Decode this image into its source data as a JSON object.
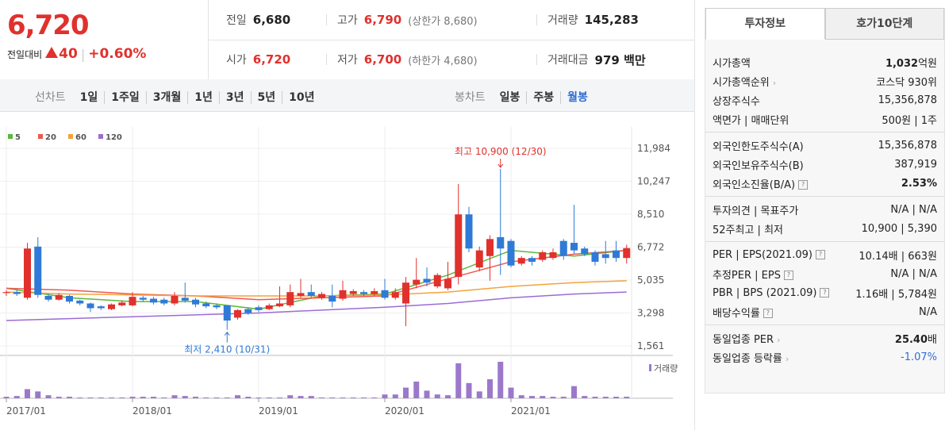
{
  "header": {
    "price": "6,720",
    "change_label": "전일대비",
    "change": "40",
    "change_rate": "+0.60%",
    "stats": [
      {
        "label": "전일",
        "value": "6,680",
        "color": "#222"
      },
      {
        "label": "고가",
        "value": "6,790",
        "note": "(상한가 8,680)",
        "color": "#e0312d"
      },
      {
        "label": "거래량",
        "value": "145,283",
        "color": "#222"
      },
      {
        "label": "시가",
        "value": "6,720",
        "color": "#e0312d"
      },
      {
        "label": "저가",
        "value": "6,700",
        "note": "(하한가 4,680)",
        "color": "#e0312d"
      },
      {
        "label": "거래대금",
        "value": "979 백만",
        "color": "#222"
      }
    ]
  },
  "toolbar": {
    "line_label": "선차트",
    "line_periods": [
      "1일",
      "1주일",
      "3개월",
      "1년",
      "3년",
      "5년",
      "10년"
    ],
    "candle_label": "봉차트",
    "candle_periods": [
      "일봉",
      "주봉",
      "월봉"
    ],
    "active": "월봉"
  },
  "chart_data": {
    "type": "candlestick",
    "categories": [
      "2017/01",
      null,
      null,
      null,
      null,
      null,
      null,
      null,
      null,
      null,
      null,
      null,
      "2018/01",
      null,
      null,
      null,
      null,
      null,
      null,
      null,
      null,
      null,
      null,
      null,
      "2019/01",
      null,
      null,
      null,
      null,
      null,
      null,
      null,
      null,
      null,
      null,
      null,
      "2020/01",
      null,
      null,
      null,
      null,
      null,
      null,
      null,
      null,
      null,
      null,
      null,
      "2021/01",
      null,
      null,
      null,
      null,
      null,
      null,
      null,
      null,
      null,
      null,
      null
    ],
    "open": [
      4350,
      4400,
      4100,
      6800,
      4200,
      4000,
      4200,
      3950,
      3800,
      3650,
      3500,
      3700,
      3700,
      4100,
      4050,
      4000,
      3800,
      4100,
      4000,
      3800,
      3700,
      3700,
      3050,
      3500,
      3600,
      3500,
      3650,
      3700,
      4200,
      4400,
      4100,
      4200,
      4050,
      4300,
      4400,
      4300,
      4500,
      4100,
      3800,
      4800,
      5100,
      4700,
      4600,
      5200,
      8500,
      5700,
      6300,
      7300,
      7100,
      5900,
      6200,
      6100,
      6200,
      7100,
      7000,
      6700,
      6500,
      6400,
      6600,
      6200
    ],
    "high": [
      4500,
      4500,
      7000,
      7300,
      4300,
      4350,
      4250,
      4000,
      3850,
      3700,
      3800,
      3950,
      4400,
      4200,
      4150,
      4100,
      4400,
      4900,
      4100,
      3900,
      3800,
      3700,
      3500,
      3600,
      3700,
      3800,
      4700,
      4800,
      5100,
      4800,
      4400,
      4800,
      5000,
      4550,
      4500,
      4600,
      5100,
      4600,
      5200,
      6200,
      5700,
      5400,
      6000,
      10100,
      8900,
      6800,
      7400,
      10900,
      7200,
      6300,
      6300,
      6600,
      6700,
      7200,
      9000,
      6800,
      6600,
      7100,
      7100,
      6900
    ],
    "low": [
      4200,
      4200,
      4000,
      4100,
      3900,
      3950,
      3800,
      3700,
      3350,
      3450,
      3450,
      3650,
      3650,
      3900,
      3750,
      3700,
      3700,
      3850,
      3600,
      3550,
      3500,
      2410,
      2950,
      3200,
      3350,
      3450,
      3600,
      3600,
      4100,
      4050,
      4000,
      3600,
      3950,
      4200,
      4200,
      4200,
      4000,
      4000,
      2600,
      4600,
      4700,
      4600,
      4500,
      4800,
      6500,
      5500,
      5000,
      5300,
      5700,
      5800,
      5800,
      6000,
      6100,
      6100,
      6400,
      6300,
      5800,
      5900,
      6000,
      5900
    ],
    "close": [
      4400,
      4300,
      6700,
      4250,
      4000,
      4250,
      3900,
      3800,
      3550,
      3550,
      3750,
      3850,
      4150,
      4000,
      3850,
      3800,
      4200,
      3950,
      3750,
      3650,
      3600,
      2900,
      3450,
      3300,
      3450,
      3700,
      3800,
      4400,
      4350,
      4200,
      4300,
      3900,
      4500,
      4450,
      4300,
      4450,
      4100,
      4400,
      4900,
      5050,
      4900,
      5300,
      5100,
      8500,
      6700,
      6600,
      7200,
      6700,
      5800,
      6200,
      6000,
      6500,
      6500,
      6300,
      6600,
      6400,
      6000,
      6200,
      6200,
      6720
    ],
    "up_color": "#e0312d",
    "down_color": "#2f7ad6",
    "series": [
      {
        "name": "5",
        "color": "#5cb83b",
        "x": [
          "2017/01",
          "2017/07",
          "2018/01",
          "2018/07",
          "2019/01",
          "2019/07",
          "2020/01",
          "2020/07",
          "2021/01",
          "2021/07",
          "2021/12"
        ],
        "values": [
          4600,
          4100,
          3900,
          3900,
          3500,
          4200,
          4300,
          5300,
          6600,
          6300,
          6600
        ]
      },
      {
        "name": "20",
        "color": "#f05650",
        "x": [
          "2017/01",
          "2017/07",
          "2018/01",
          "2018/07",
          "2019/01",
          "2019/07",
          "2020/01",
          "2020/07",
          "2021/01",
          "2021/07",
          "2021/12"
        ],
        "values": [
          4600,
          4500,
          4300,
          4200,
          4000,
          4100,
          4200,
          5100,
          6000,
          6400,
          6600
        ]
      },
      {
        "name": "60",
        "color": "#f5a23a",
        "x": [
          "2017/01",
          "2017/07",
          "2018/01",
          "2018/07",
          "2019/01",
          "2019/07",
          "2020/01",
          "2020/07",
          "2021/01",
          "2021/07",
          "2021/12"
        ],
        "values": [
          4400,
          4300,
          4250,
          4200,
          4200,
          4200,
          4250,
          4400,
          4700,
          4900,
          5000
        ]
      },
      {
        "name": "120",
        "color": "#9c6cd4",
        "x": [
          "2017/01",
          "2017/07",
          "2018/01",
          "2018/07",
          "2019/01",
          "2019/07",
          "2020/01",
          "2020/07",
          "2021/01",
          "2021/07",
          "2021/12"
        ],
        "values": [
          2900,
          3000,
          3100,
          3200,
          3300,
          3450,
          3600,
          3800,
          4100,
          4300,
          4400
        ]
      }
    ],
    "volume": {
      "name": "거래량",
      "color": "#9b78cc",
      "values": [
        2,
        3,
        12,
        9,
        4,
        2,
        2,
        1,
        1,
        1,
        1,
        1,
        2,
        2,
        2,
        1,
        4,
        3,
        2,
        1,
        1,
        1,
        4,
        2,
        1,
        1,
        1,
        4,
        3,
        3,
        1,
        1,
        1,
        1,
        1,
        1,
        5,
        5,
        14,
        22,
        10,
        5,
        4,
        46,
        20,
        9,
        25,
        48,
        14,
        4,
        3,
        3,
        2,
        2,
        16,
        3,
        2,
        2,
        2,
        2
      ]
    },
    "annotations": {
      "high": "최고 10,900 (12/30)",
      "low": "최저 2,410 (10/31)"
    },
    "ylim": [
      1561,
      11984
    ],
    "yticks": [
      {
        "value": 1561,
        "label": "1,561"
      },
      {
        "value": 3298,
        "label": "3,298"
      },
      {
        "value": 5035,
        "label": "5,035"
      },
      {
        "value": 6772,
        "label": "6,772"
      },
      {
        "value": 8510,
        "label": "8,510"
      },
      {
        "value": 10247,
        "label": "10,247"
      },
      {
        "value": 11984,
        "label": "11,984"
      }
    ],
    "grid": true
  },
  "side": {
    "tabs": [
      "투자정보",
      "호가10단계"
    ],
    "sections": [
      [
        {
          "label": "시가총액",
          "value": "1,032",
          "unit": "억원",
          "bold": true
        },
        {
          "label": "시가총액순위",
          "marker": "arrow",
          "value": "코스닥 930위"
        },
        {
          "label": "상장주식수",
          "value": "15,356,878"
        },
        {
          "label": "액면가 | 매매단위",
          "value": "500원 | 1주"
        }
      ],
      [
        {
          "label": "외국인한도주식수(A)",
          "value": "15,356,878"
        },
        {
          "label": "외국인보유주식수(B)",
          "value": "387,919"
        },
        {
          "label": "외국인소진율(B/A)",
          "marker": "help",
          "value": "2.53%",
          "bold": true
        }
      ],
      [
        {
          "label": "투자의견 | 목표주가",
          "value": "N/A | N/A"
        },
        {
          "label": "52주최고 | 최저",
          "value": "10,900 | 5,390"
        }
      ],
      [
        {
          "label": "PER | EPS(2021.09)",
          "marker": "help",
          "value": "10.14배 | 663원"
        },
        {
          "label": "추정PER | EPS",
          "marker": "help",
          "value": "N/A | N/A"
        },
        {
          "label": "PBR | BPS (2021.09)",
          "marker": "help",
          "value": "1.16배 | 5,784원"
        },
        {
          "label": "배당수익률",
          "marker": "help",
          "value": "N/A"
        }
      ],
      [
        {
          "label": "동일업종 PER",
          "marker": "arrow",
          "value": "25.40",
          "unit": "배",
          "bold": true
        },
        {
          "label": "동일업종 등락률",
          "marker": "arrow",
          "value": "-1.07%",
          "color": "#2f6fd6"
        }
      ]
    ]
  }
}
